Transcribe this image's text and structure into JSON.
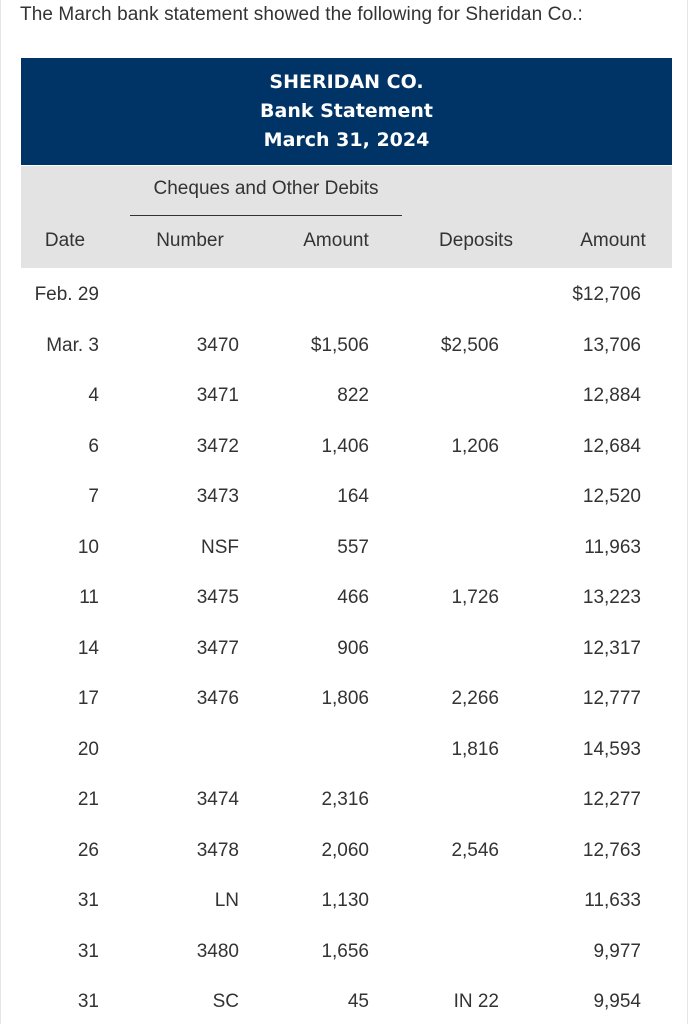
{
  "intro": "The March bank statement showed the following for Sheridan Co.:",
  "statement": {
    "company": "SHERIDAN CO.",
    "title": "Bank Statement",
    "date": "March 31, 2024"
  },
  "columns": {
    "group": "Cheques and Other Debits",
    "date": "Date",
    "number": "Number",
    "amount": "Amount",
    "deposits": "Deposits",
    "balance": "Amount"
  },
  "rows": [
    {
      "date": "Feb. 29",
      "number": "",
      "amount": "",
      "deposit": "",
      "balance": "$12,706"
    },
    {
      "date": "Mar. 3",
      "number": "3470",
      "amount": "$1,506",
      "deposit": "$2,506",
      "balance": "13,706"
    },
    {
      "date": "4",
      "number": "3471",
      "amount": "822",
      "deposit": "",
      "balance": "12,884"
    },
    {
      "date": "6",
      "number": "3472",
      "amount": "1,406",
      "deposit": "1,206",
      "balance": "12,684"
    },
    {
      "date": "7",
      "number": "3473",
      "amount": "164",
      "deposit": "",
      "balance": "12,520"
    },
    {
      "date": "10",
      "number": "NSF",
      "amount": "557",
      "deposit": "",
      "balance": "11,963"
    },
    {
      "date": "11",
      "number": "3475",
      "amount": "466",
      "deposit": "1,726",
      "balance": "13,223"
    },
    {
      "date": "14",
      "number": "3477",
      "amount": "906",
      "deposit": "",
      "balance": "12,317"
    },
    {
      "date": "17",
      "number": "3476",
      "amount": "1,806",
      "deposit": "2,266",
      "balance": "12,777"
    },
    {
      "date": "20",
      "number": "",
      "amount": "",
      "deposit": "1,816",
      "balance": "14,593"
    },
    {
      "date": "21",
      "number": "3474",
      "amount": "2,316",
      "deposit": "",
      "balance": "12,277"
    },
    {
      "date": "26",
      "number": "3478",
      "amount": "2,060",
      "deposit": "2,546",
      "balance": "12,763"
    },
    {
      "date": "31",
      "number": "LN",
      "amount": "1,130",
      "deposit": "",
      "balance": "11,633"
    },
    {
      "date": "31",
      "number": "3480",
      "amount": "1,656",
      "deposit": "",
      "balance": "9,977"
    },
    {
      "date": "31",
      "number": "SC",
      "amount": "45",
      "deposit": "IN 22",
      "balance": "9,954"
    }
  ]
}
